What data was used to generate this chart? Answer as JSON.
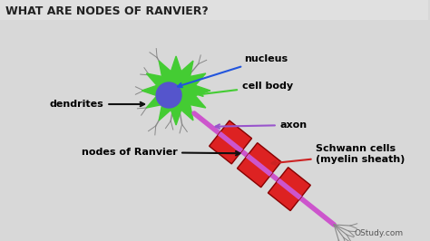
{
  "title": "WHAT ARE NODES OF RANVIER?",
  "title_color": "#222222",
  "title_fontsize": 9,
  "bg_color": "#d8d8d8",
  "header_color": "#e8e8e8",
  "labels": {
    "nucleus": "nucleus",
    "cell_body": "cell body",
    "dendrites": "dendrites",
    "axon": "axon",
    "nodes_of_ranvier": "nodes of Ranvier",
    "schwann_cells": "Schwann cells\n(myelin sheath)",
    "study": "OStudy.com"
  },
  "colors": {
    "cell_body": "#44cc33",
    "nucleus": "#5555cc",
    "axon": "#cc55cc",
    "myelin": "#dd2222",
    "node_gap": "#cc55cc",
    "arrow_nucleus": "#2255dd",
    "arrow_cell_body": "#44cc33",
    "arrow_axon": "#9955cc",
    "arrow_schwann": "#cc2222",
    "arrow_dendrites": "#111111",
    "arrow_ranvier": "#111111",
    "dendrite": "#888888",
    "terminal": "#888888"
  }
}
